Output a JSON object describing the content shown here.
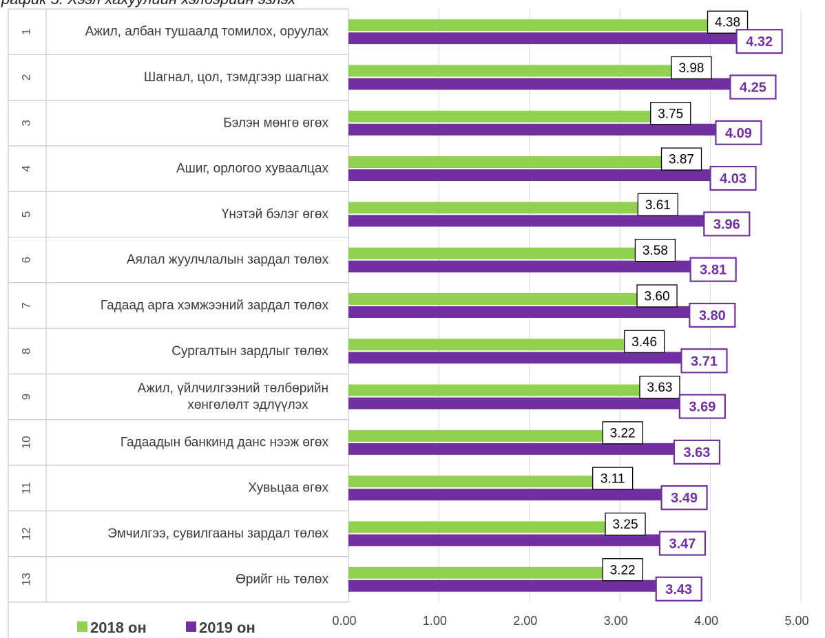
{
  "caption": "рафик 5. Хээл хахуулийн хэлбэрийн эзлэх",
  "colors": {
    "series_2018": "#92d050",
    "series_2019": "#7030a0",
    "grid": "#d9d9d9",
    "table_border": "#bfbfbf"
  },
  "chart_data": {
    "type": "bar",
    "orientation": "horizontal",
    "title": "",
    "xlim": [
      0,
      5
    ],
    "xticks": [
      "0.00",
      "1.00",
      "2.00",
      "3.00",
      "4.00",
      "5.00"
    ],
    "grid": true,
    "legend_position": "bottom-left",
    "categories": [
      {
        "rank": "1",
        "label": [
          "Ажил, албан тушаалд томилох, оруулах"
        ]
      },
      {
        "rank": "2",
        "label": [
          "Шагнал, цол, тэмдгээр шагнах"
        ]
      },
      {
        "rank": "3",
        "label": [
          "Бэлэн мөнгө өгөх"
        ]
      },
      {
        "rank": "4",
        "label": [
          "Ашиг, орлогоо хуваалцах"
        ]
      },
      {
        "rank": "5",
        "label": [
          "Үнэтэй бэлэг өгөх"
        ]
      },
      {
        "rank": "6",
        "label": [
          "Аялал жуулчлалын зардал төлөх"
        ]
      },
      {
        "rank": "7",
        "label": [
          "Гадаад арга хэмжээний зардал төлөх"
        ]
      },
      {
        "rank": "8",
        "label": [
          "Сургалтын зардлыг төлөх"
        ]
      },
      {
        "rank": "9",
        "label": [
          "Ажил, үйлчилгээний төлбөрийн",
          "хөнгөлөлт эдлүүлэх"
        ]
      },
      {
        "rank": "10",
        "label": [
          "Гадаадын банкинд данс нээж өгөх"
        ]
      },
      {
        "rank": "11",
        "label": [
          "Хувьцаа өгөх"
        ]
      },
      {
        "rank": "12",
        "label": [
          "Эмчилгээ, сувилгааны зардал төлөх"
        ]
      },
      {
        "rank": "13",
        "label": [
          "Өрийг нь төлөх"
        ]
      }
    ],
    "series": [
      {
        "name": "2018 он",
        "color": "#92d050",
        "values": [
          4.38,
          3.98,
          3.75,
          3.87,
          3.61,
          3.58,
          3.6,
          3.46,
          3.63,
          3.22,
          3.11,
          3.25,
          3.22
        ],
        "labels": [
          "4.38",
          "3.98",
          "3.75",
          "3.87",
          "3.61",
          "3.58",
          "3.60",
          "3.46",
          "3.63",
          "3.22",
          "3.11",
          "3.25",
          "3.22"
        ]
      },
      {
        "name": "2019 он",
        "color": "#7030a0",
        "values": [
          4.32,
          4.25,
          4.09,
          4.03,
          3.96,
          3.81,
          3.8,
          3.71,
          3.69,
          3.63,
          3.49,
          3.47,
          3.43
        ],
        "labels": [
          "4.32",
          "4.25",
          "4.09",
          "4.03",
          "3.96",
          "3.81",
          "3.80",
          "3.71",
          "3.69",
          "3.63",
          "3.49",
          "3.47",
          "3.43"
        ]
      }
    ]
  }
}
